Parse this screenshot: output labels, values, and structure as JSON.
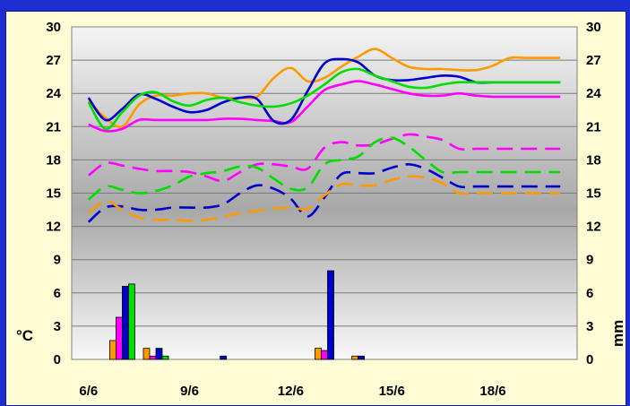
{
  "chart_data": {
    "type": "line",
    "title": "",
    "y_left_label": "°C",
    "y_right_label": "mm",
    "x_tick_labels": [
      "6/6",
      "9/6",
      "12/6",
      "15/6",
      "18/6"
    ],
    "x_range": [
      5.5,
      20.5
    ],
    "y_ticks": [
      "30",
      "27",
      "24",
      "21",
      "18",
      "15",
      "12",
      "9",
      "6",
      "3",
      "0"
    ],
    "ylim": [
      0,
      30
    ],
    "grid": true,
    "series_colors": {
      "orange": "#ff9900",
      "magenta": "#ff00ff",
      "blue": "#0000cc",
      "green": "#00dd00"
    },
    "x": [
      6,
      6.5,
      7,
      7.5,
      8,
      8.5,
      9,
      9.5,
      10,
      10.5,
      11,
      11.5,
      12,
      12.5,
      13,
      13.5,
      14,
      14.5,
      15,
      15.5,
      16,
      16.5,
      17,
      17.5,
      18,
      18.5,
      19,
      19.5,
      20
    ],
    "series": [
      {
        "color": "orange",
        "kind": "max",
        "values": [
          23.3,
          21.8,
          21.0,
          23.0,
          23.8,
          23.8,
          24.0,
          24.0,
          23.6,
          23.6,
          23.7,
          25.4,
          26.3,
          25.1,
          25.4,
          26.4,
          27.3,
          28.0,
          27.2,
          26.4,
          26.2,
          26.2,
          26.1,
          26.1,
          26.5,
          27.2,
          27.2,
          27.2,
          27.2
        ]
      },
      {
        "color": "magenta",
        "kind": "max",
        "values": [
          21.2,
          20.6,
          20.8,
          21.6,
          21.6,
          21.6,
          21.6,
          21.6,
          21.7,
          21.7,
          21.6,
          21.5,
          21.4,
          22.8,
          24.3,
          24.8,
          25.1,
          24.8,
          24.4,
          24.0,
          23.8,
          23.8,
          24.0,
          23.8,
          23.7,
          23.7,
          23.7,
          23.7,
          23.7
        ]
      },
      {
        "color": "blue",
        "kind": "max",
        "values": [
          23.6,
          21.6,
          22.6,
          23.9,
          23.5,
          22.8,
          22.3,
          22.5,
          23.2,
          23.6,
          23.5,
          21.5,
          21.6,
          24.2,
          26.7,
          27.1,
          26.8,
          25.6,
          25.2,
          25.2,
          25.4,
          25.6,
          25.5,
          25.0,
          25.0,
          25.0,
          25.0,
          25.0,
          25.0
        ]
      },
      {
        "color": "green",
        "kind": "max",
        "values": [
          23.2,
          20.8,
          22.3,
          23.8,
          24.1,
          23.3,
          22.9,
          23.4,
          23.6,
          23.2,
          22.9,
          22.8,
          23.1,
          23.8,
          24.8,
          25.9,
          26.2,
          25.6,
          25.1,
          24.6,
          24.5,
          24.8,
          25.0,
          25.0,
          25.0,
          25.0,
          25.0,
          25.0,
          25.0
        ]
      },
      {
        "color": "magenta",
        "kind": "min",
        "values": [
          16.6,
          17.7,
          17.5,
          17.2,
          17.0,
          17.0,
          16.9,
          16.5,
          16.1,
          16.9,
          17.6,
          17.6,
          17.4,
          17.2,
          19.1,
          19.6,
          19.3,
          19.4,
          19.9,
          20.3,
          20.1,
          19.8,
          19.0,
          19.0,
          19.0,
          19.0,
          19.0,
          19.0,
          19.0
        ]
      },
      {
        "color": "green",
        "kind": "min",
        "values": [
          14.4,
          15.6,
          15.3,
          15.0,
          15.2,
          15.7,
          16.5,
          16.8,
          17.0,
          17.4,
          17.3,
          16.3,
          15.4,
          15.5,
          17.6,
          18.0,
          18.3,
          19.6,
          20.0,
          19.2,
          18.0,
          16.9,
          16.9,
          16.9,
          16.9,
          16.9,
          16.9,
          16.9,
          16.9
        ]
      },
      {
        "color": "blue",
        "kind": "min",
        "values": [
          12.4,
          13.7,
          13.8,
          13.5,
          13.5,
          13.7,
          13.7,
          13.7,
          14.0,
          15.0,
          15.7,
          15.4,
          14.5,
          12.9,
          14.6,
          16.7,
          16.8,
          16.8,
          17.3,
          17.6,
          17.2,
          16.4,
          15.6,
          15.6,
          15.6,
          15.6,
          15.6,
          15.6,
          15.6
        ]
      },
      {
        "color": "orange",
        "kind": "min",
        "values": [
          13.2,
          14.3,
          13.5,
          12.8,
          12.6,
          12.6,
          12.5,
          12.6,
          12.9,
          13.2,
          13.4,
          13.6,
          13.7,
          13.6,
          14.8,
          15.8,
          15.7,
          15.7,
          16.2,
          16.5,
          16.4,
          15.9,
          15.0,
          15.0,
          15.0,
          15.0,
          15.0,
          15.0,
          15.0
        ]
      }
    ],
    "bars": {
      "unit": "mm",
      "groups": [
        {
          "x": 7,
          "values": [
            {
              "color": "orange",
              "v": 1.7
            },
            {
              "color": "magenta",
              "v": 3.8
            },
            {
              "color": "blue",
              "v": 6.6
            },
            {
              "color": "green",
              "v": 6.8
            }
          ]
        },
        {
          "x": 8,
          "values": [
            {
              "color": "orange",
              "v": 1.0
            },
            {
              "color": "magenta",
              "v": 0.3
            },
            {
              "color": "blue",
              "v": 1.0
            },
            {
              "color": "green",
              "v": 0.3
            }
          ]
        },
        {
          "x": 10,
          "values": [
            {
              "color": "blue",
              "v": 0.3
            }
          ]
        },
        {
          "x": 13,
          "values": [
            {
              "color": "orange",
              "v": 1.0
            },
            {
              "color": "magenta",
              "v": 0.8
            },
            {
              "color": "blue",
              "v": 8.0
            }
          ]
        },
        {
          "x": 14,
          "values": [
            {
              "color": "orange",
              "v": 0.3
            },
            {
              "color": "blue",
              "v": 0.3
            }
          ]
        }
      ]
    }
  }
}
